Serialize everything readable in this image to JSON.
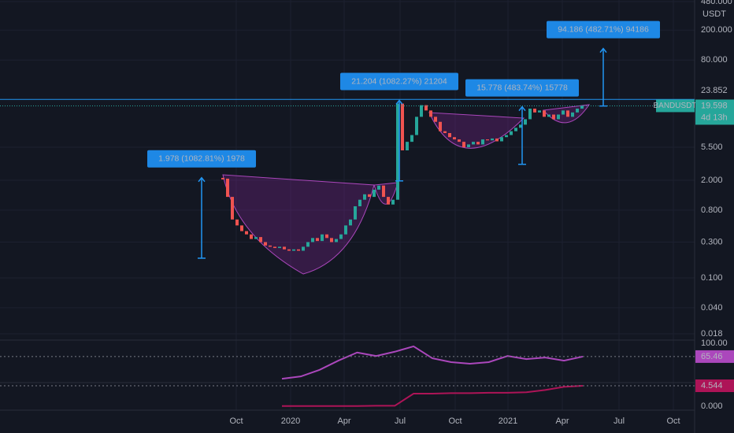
{
  "chart_data": {
    "type": "candlestick",
    "symbol": "BANDUSDT",
    "currency": "USDT",
    "countdown": "4d 13h",
    "last_price": 19.598,
    "level_price": 23.852,
    "ylim": [
      0.018,
      480
    ],
    "log_scale": true,
    "yticks": [
      {
        "value": 480,
        "label": "480.000"
      },
      {
        "value": 200,
        "label": "200.000"
      },
      {
        "value": 80,
        "label": "80.000"
      },
      {
        "value": 5.5,
        "label": "5.500"
      },
      {
        "value": 2,
        "label": "2.000"
      },
      {
        "value": 0.8,
        "label": "0.800"
      },
      {
        "value": 0.3,
        "label": "0.300"
      },
      {
        "value": 0.1,
        "label": "0.100"
      },
      {
        "value": 0.04,
        "label": "0.040"
      },
      {
        "value": 0.018,
        "label": "0.018"
      }
    ],
    "xticks": [
      "Oct",
      "2020",
      "Apr",
      "Jul",
      "Oct",
      "2021",
      "Apr",
      "Jul",
      "Oct"
    ],
    "up_color": "#26a69a",
    "down_color": "#ef5350",
    "closes": [
      2.1,
      1.2,
      0.6,
      0.5,
      0.42,
      0.38,
      0.33,
      0.35,
      0.3,
      0.27,
      0.26,
      0.25,
      0.26,
      0.24,
      0.23,
      0.24,
      0.23,
      0.26,
      0.3,
      0.34,
      0.31,
      0.38,
      0.34,
      0.3,
      0.33,
      0.38,
      0.5,
      0.6,
      0.9,
      1.1,
      1.3,
      1.2,
      1.5,
      1.7,
      1.2,
      0.95,
      1.1,
      21,
      5.0,
      6.5,
      8,
      14,
      20,
      17,
      14,
      12,
      9,
      8.5,
      7.5,
      7,
      6.5,
      5.5,
      6,
      6.5,
      6,
      7,
      6.8,
      7.2,
      6.6,
      7.5,
      8,
      9,
      10,
      11,
      13,
      18,
      16,
      17,
      14,
      15,
      13,
      15,
      17,
      14,
      16,
      18,
      19.598
    ],
    "annotations": [
      {
        "label": "1.978 (1082.81%) 1978",
        "from": 0.183,
        "to": 2.16
      },
      {
        "label": "21.204 (1082.27%) 21204",
        "from": 1.96,
        "to": 23.16
      },
      {
        "label": "15.778 (483.74%) 15778",
        "from": 3.26,
        "to": 19.04
      },
      {
        "label": "94.186 (482.71%) 94186",
        "from": 19.5,
        "to": 113.7
      }
    ],
    "indicators": [
      {
        "color": "#ab47bc",
        "ylim": [
          0,
          100
        ],
        "yticks": [
          {
            "value": 100,
            "label": "100.00"
          }
        ],
        "last": 65.46,
        "values": [
          8,
          14,
          31,
          55,
          76,
          67,
          78,
          92,
          61,
          51,
          47,
          51,
          67,
          59,
          63,
          55,
          65.46
        ]
      },
      {
        "color": "#ad1457",
        "ylim": [
          0,
          5
        ],
        "yticks": [
          {
            "value": 0,
            "label": "0.000"
          }
        ],
        "last": 4.544,
        "values": [
          0.05,
          0.05,
          0.05,
          0.05,
          0.05,
          0.1,
          0.1,
          2.8,
          2.8,
          2.9,
          2.9,
          3.0,
          3.0,
          3.1,
          3.6,
          4.3,
          4.544
        ]
      }
    ]
  }
}
